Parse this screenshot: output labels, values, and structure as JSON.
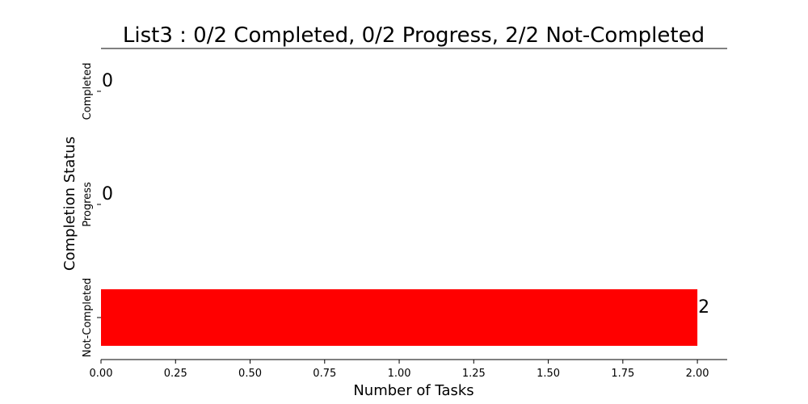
{
  "chart_data": {
    "type": "bar",
    "orientation": "horizontal",
    "title": "List3 : 0/2 Completed, 0/2 Progress, 2/2 Not-Completed",
    "xlabel": "Number of Tasks",
    "ylabel": "Completion Status",
    "categories": [
      "Completed",
      "Progress",
      "Not-Completed"
    ],
    "values": [
      0,
      0,
      2
    ],
    "data_labels": [
      "0",
      "0",
      "2"
    ],
    "bar_color": "#ff0000",
    "xlim": [
      0,
      2.1
    ],
    "xticks": [
      "0.00",
      "0.25",
      "0.50",
      "0.75",
      "1.00",
      "1.25",
      "1.50",
      "1.75",
      "2.00"
    ],
    "grid": false
  }
}
